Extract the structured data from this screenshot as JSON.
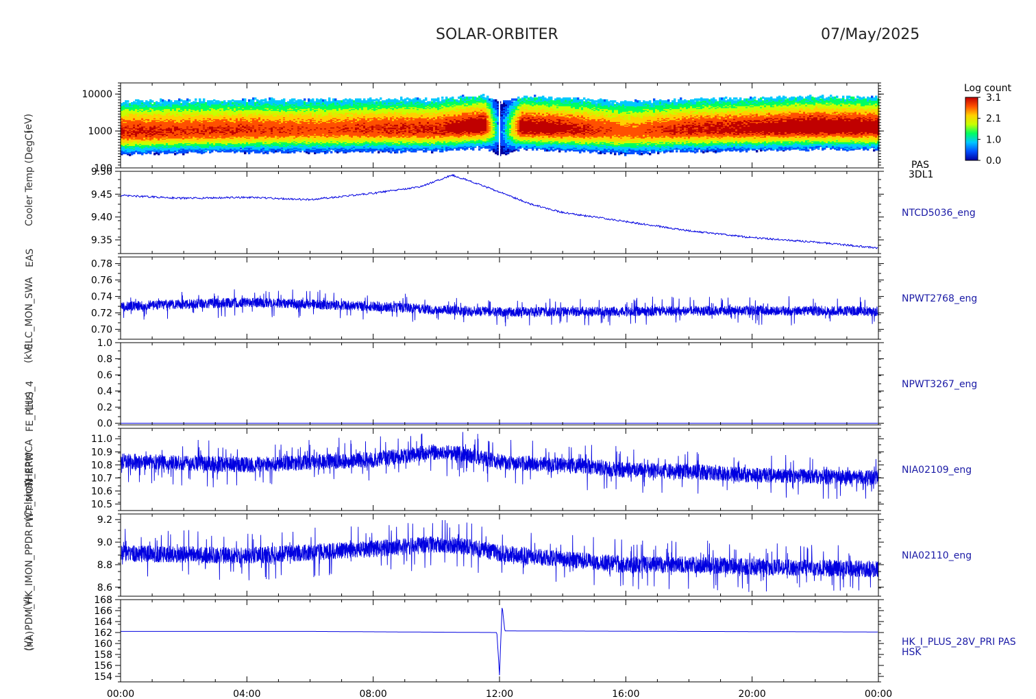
{
  "header": {
    "mission": "SOLAR-ORBITER",
    "date": "07/May/2025"
  },
  "colorbar": {
    "title": "Log count",
    "ticks": [
      "3.1",
      "2.1",
      "1.0",
      "0.0"
    ],
    "colors": [
      "#0000a0",
      "#0050ff",
      "#00c8ff",
      "#00ff60",
      "#c8ff00",
      "#ffd000",
      "#ff5000",
      "#c00000"
    ]
  },
  "time_axis": {
    "ticks": [
      "00:00",
      "04:00",
      "08:00",
      "12:00",
      "16:00",
      "20:00",
      "00:00"
    ]
  },
  "y_axis_labels": [
    "(nA)",
    "(V)",
    "(V)",
    "PDM_HK_IMON_PPDR",
    "(Celsius)",
    "THERMCA",
    "PWT_MON_RPW",
    "(Hz)",
    "FE_PLUS_4",
    "(kV)",
    "ELC_MON_SWA",
    "EAS",
    "Cooler Temp (DegC)",
    "(eV)"
  ],
  "chart_data": [
    {
      "type": "heatmap",
      "name": "PAS",
      "right_labels": [
        "PAS",
        "3DL1"
      ],
      "ylabel": "(eV)",
      "y_scale": "log",
      "yticks": [
        "10000",
        "1000",
        "100"
      ],
      "ylim": [
        100,
        20000
      ],
      "value_label": "Log count",
      "value_range": [
        0.0,
        3.1
      ],
      "x": [
        "00:00",
        "02:00",
        "04:00",
        "06:00",
        "08:00",
        "10:00",
        "11:30",
        "12:00",
        "12:40",
        "14:00",
        "16:00",
        "18:00",
        "20:00",
        "22:00",
        "24:00"
      ],
      "peak_energy_eV": [
        900,
        950,
        1000,
        1000,
        1050,
        1050,
        1300,
        800,
        1200,
        1100,
        900,
        1050,
        1100,
        1200,
        1150
      ],
      "max_log_count": [
        2.8,
        2.7,
        2.7,
        2.6,
        2.7,
        2.8,
        3.1,
        0.5,
        3.0,
        2.9,
        2.5,
        2.8,
        2.9,
        3.1,
        3.0
      ]
    },
    {
      "type": "line",
      "name": "NTCD5036_eng",
      "yticks": [
        "9.50",
        "9.45",
        "9.40",
        "9.35"
      ],
      "ylim": [
        9.32,
        9.5
      ],
      "x": [
        "00:00",
        "02:00",
        "04:00",
        "06:00",
        "08:00",
        "09:30",
        "10:30",
        "11:00",
        "12:00",
        "13:00",
        "14:00",
        "16:00",
        "18:00",
        "20:00",
        "22:00",
        "24:00"
      ],
      "y": [
        9.447,
        9.441,
        9.443,
        9.438,
        9.452,
        9.466,
        9.492,
        9.48,
        9.455,
        9.428,
        9.41,
        9.39,
        9.37,
        9.355,
        9.345,
        9.332
      ]
    },
    {
      "type": "line",
      "name": "NPWT2768_eng",
      "yticks": [
        "0.78",
        "0.76",
        "0.74",
        "0.72",
        "0.70"
      ],
      "ylim": [
        0.688,
        0.788
      ],
      "x": [
        "00:00",
        "04:00",
        "08:00",
        "10:00",
        "12:00",
        "16:00",
        "20:00",
        "24:00"
      ],
      "y": [
        0.728,
        0.733,
        0.728,
        0.724,
        0.721,
        0.722,
        0.723,
        0.722
      ],
      "noise_amplitude": 0.012
    },
    {
      "type": "line",
      "name": "NPWT3267_eng",
      "yticks": [
        "1.0",
        "0.8",
        "0.6",
        "0.4",
        "0.2",
        "0.0"
      ],
      "ylim": [
        -0.02,
        1.0
      ],
      "x": [
        "00:00",
        "24:00"
      ],
      "y": [
        0.0,
        0.0
      ]
    },
    {
      "type": "line",
      "name": "NIA02109_eng",
      "yticks": [
        "11.0",
        "10.9",
        "10.8",
        "10.7",
        "10.6",
        "10.5"
      ],
      "ylim": [
        10.45,
        11.08
      ],
      "x": [
        "00:00",
        "04:00",
        "08:00",
        "10:00",
        "11:00",
        "12:00",
        "14:00",
        "16:00",
        "18:00",
        "20:00",
        "24:00"
      ],
      "y": [
        10.83,
        10.8,
        10.84,
        10.9,
        10.88,
        10.82,
        10.8,
        10.76,
        10.75,
        10.72,
        10.7
      ],
      "noise_amplitude": 0.12
    },
    {
      "type": "line",
      "name": "NIA02110_eng",
      "yticks": [
        "9.2",
        "9.0",
        "8.8",
        "8.6"
      ],
      "ylim": [
        8.52,
        9.25
      ],
      "x": [
        "00:00",
        "04:00",
        "08:00",
        "10:00",
        "11:00",
        "12:00",
        "14:00",
        "16:00",
        "18:00",
        "20:00",
        "24:00"
      ],
      "y": [
        8.9,
        8.88,
        8.94,
        8.98,
        8.96,
        8.9,
        8.85,
        8.8,
        8.8,
        8.78,
        8.76
      ],
      "noise_amplitude": 0.15
    },
    {
      "type": "line",
      "name": "HK_I_PLUS_28V_PRI PAS",
      "right_labels": [
        "HK_I_PLUS_28V_PRI PAS",
        "HSK"
      ],
      "ylabel": "(nA)",
      "yticks": [
        "168",
        "166",
        "164",
        "162",
        "160",
        "158",
        "156",
        "154"
      ],
      "ylim": [
        153,
        168
      ],
      "x": [
        "00:00",
        "06:00",
        "11:55",
        "12:00",
        "12:05",
        "12:10",
        "18:00",
        "24:00"
      ],
      "y": [
        162.2,
        162.2,
        162.0,
        154.2,
        167.0,
        162.3,
        162.2,
        162.1
      ]
    }
  ]
}
